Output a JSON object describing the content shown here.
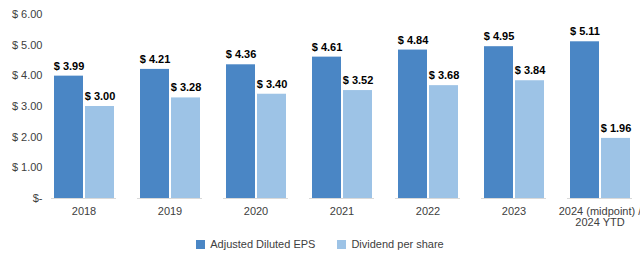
{
  "chart_data": {
    "type": "bar",
    "categories": [
      "2018",
      "2019",
      "2020",
      "2021",
      "2022",
      "2023",
      "2024 (midpoint) /\n2024 YTD"
    ],
    "series": [
      {
        "name": "Adjusted Diluted EPS",
        "color": "#4a86c5",
        "values": [
          3.99,
          4.21,
          4.36,
          4.61,
          4.84,
          4.95,
          5.11
        ],
        "value_labels": [
          "$ 3.99",
          "$ 4.21",
          "$ 4.36",
          "$ 4.61",
          "$ 4.84",
          "$ 4.95",
          "$ 5.11"
        ]
      },
      {
        "name": "Dividend per share",
        "color": "#9dc3e6",
        "values": [
          3.0,
          3.28,
          3.4,
          3.52,
          3.68,
          3.84,
          1.96
        ],
        "value_labels": [
          "$ 3.00",
          "$ 3.28",
          "$ 3.40",
          "$ 3.52",
          "$ 3.68",
          "$ 3.84",
          "$ 1.96"
        ]
      }
    ],
    "ylim": [
      0,
      6
    ],
    "yticks": [
      {
        "value": 0,
        "label": "$-"
      },
      {
        "value": 1,
        "label": "$ 1.00"
      },
      {
        "value": 2,
        "label": "$ 2.00"
      },
      {
        "value": 3,
        "label": "$ 3.00"
      },
      {
        "value": 4,
        "label": "$ 4.00"
      },
      {
        "value": 5,
        "label": "$ 5.00"
      },
      {
        "value": 6,
        "label": "$ 6.00"
      }
    ],
    "grid": false,
    "legend": "bottom",
    "data_labels": true
  }
}
